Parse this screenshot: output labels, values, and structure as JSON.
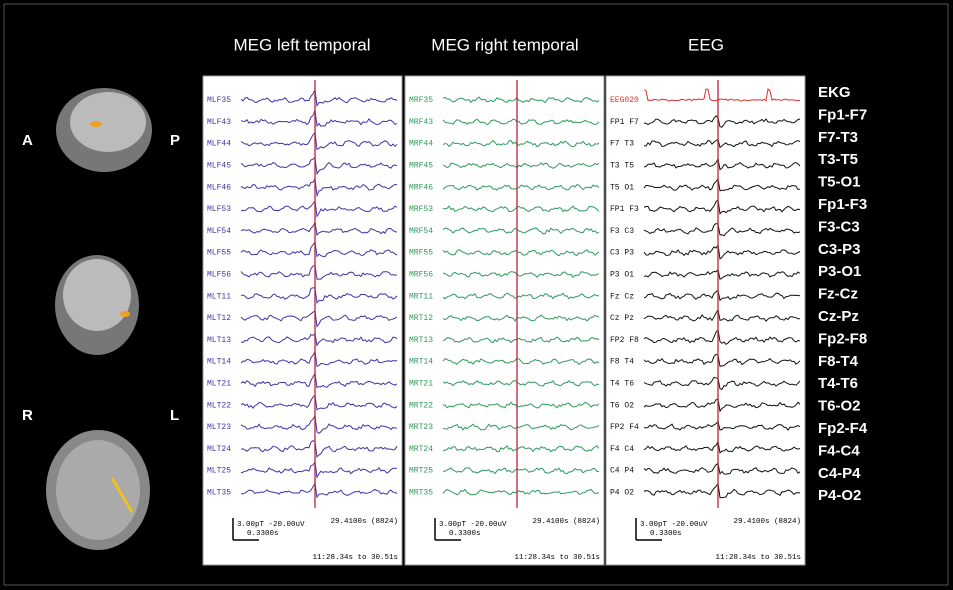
{
  "headers": [
    "MEG left temporal",
    "MEG right temporal",
    "EEG"
  ],
  "orientation": {
    "a": "A",
    "p": "P",
    "r": "R",
    "l": "L"
  },
  "panels": [
    {
      "color": "#3a36a8",
      "channels": [
        "MLF35",
        "MLF43",
        "MLF44",
        "MLF45",
        "MLF46",
        "MLF53",
        "MLF54",
        "MLF55",
        "MLF56",
        "MLT11",
        "MLT12",
        "MLT13",
        "MLT14",
        "MLT21",
        "MLT22",
        "MLT23",
        "MLT24",
        "MLT25",
        "MLT35"
      ],
      "scale": "3.00pT -20.00uV",
      "scale_time": "0.3300s",
      "time": "29.4100s (8824)",
      "range": "11:28.34s to 30.51s"
    },
    {
      "color": "#2e9a5c",
      "channels": [
        "MRF35",
        "MRF43",
        "MRF44",
        "MRF45",
        "MRF46",
        "MRF53",
        "MRF54",
        "MRF55",
        "MRF56",
        "MRT11",
        "MRT12",
        "MRT13",
        "MRT14",
        "MRT21",
        "MRT22",
        "MRT23",
        "MRT24",
        "MRT25",
        "MRT35"
      ],
      "scale": "3.00pT -20.00uV",
      "scale_time": "0.3300s",
      "time": "29.4100s (8824)",
      "range": "11:28.34s to 30.51s"
    },
    {
      "color": "#111111",
      "channels": [
        "EEG020",
        "FP1 F7",
        "F7 T3",
        "T3 T5",
        "T5 O1",
        "FP1 F3",
        "F3 C3",
        "C3 P3",
        "P3 O1",
        "Fz Cz",
        "Cz Pz",
        "FP2 F8",
        "F8 T4",
        "T4 T6",
        "T6 O2",
        "FP2 F4",
        "F4 C4",
        "C4 P4",
        "P4 O2"
      ],
      "scale": "3.00pT -20.00uV",
      "scale_time": "0.3300s",
      "time": "29.4100s (8824)",
      "range": "11:28.34s to 30.51s"
    }
  ],
  "ekg_color": "#d8302c",
  "right_labels": [
    "EKG",
    "Fp1-F7",
    "F7-T3",
    "T3-T5",
    "T5-O1",
    "Fp1-F3",
    "F3-C3",
    "C3-P3",
    "P3-O1",
    "Fz-Cz",
    "Cz-Pz",
    "Fp2-F8",
    "F8-T4",
    "T4-T6",
    "T6-O2",
    "Fp2-F4",
    "F4-C4",
    "C4-P4",
    "P4-O2"
  ]
}
